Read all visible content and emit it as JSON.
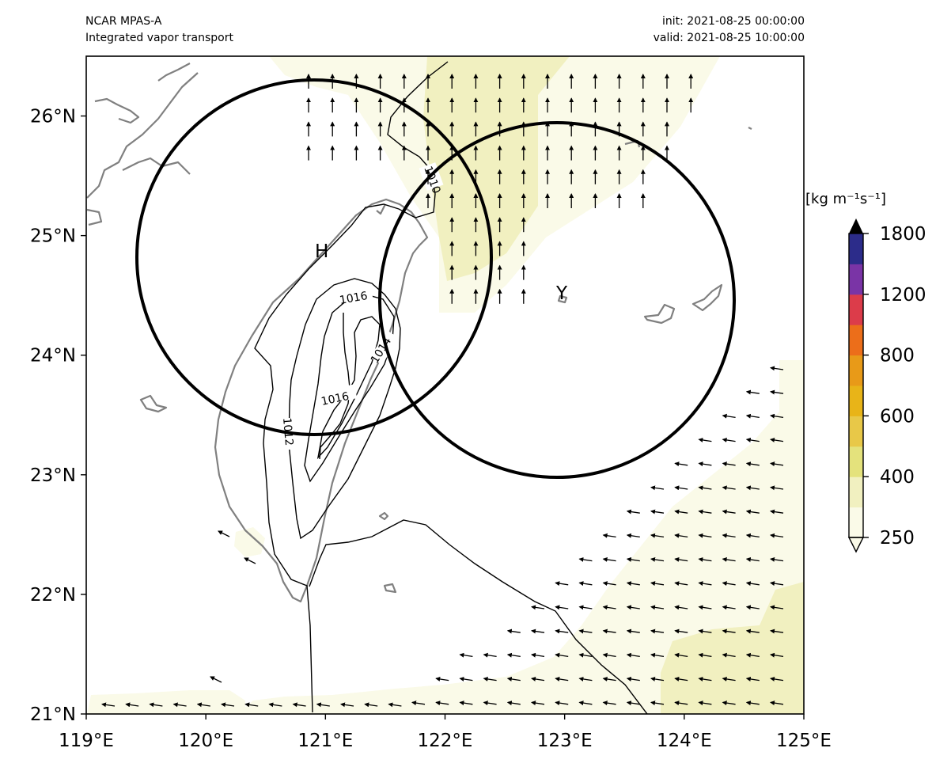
{
  "header": {
    "model": "NCAR MPAS-A",
    "product": "Integrated vapor transport",
    "init": "init: 2021-08-25 00:00:00",
    "valid": "valid: 2021-08-25 10:00:00"
  },
  "axes": {
    "lon_min": 119,
    "lon_max": 125,
    "lat_min": 21,
    "lat_max": 26.5,
    "x_ticks": [
      "119°E",
      "120°E",
      "121°E",
      "122°E",
      "123°E",
      "124°E",
      "125°E"
    ],
    "y_ticks": [
      "21°N",
      "22°N",
      "23°N",
      "24°N",
      "25°N",
      "26°N"
    ]
  },
  "chart_data": {
    "type": "heatmap",
    "title": "Integrated vapor transport",
    "xlim": [
      119,
      125
    ],
    "ylim": [
      21,
      26.5
    ],
    "colorbar": {
      "unit": "[kg m⁻¹s⁻¹]",
      "tick_labels": [
        "250",
        "400",
        "600",
        "800",
        "1200",
        "1800"
      ],
      "levels": [
        250,
        300,
        400,
        500,
        600,
        700,
        800,
        1000,
        1200,
        1500,
        1800
      ],
      "colors": [
        "#fafae8",
        "#f1f0c0",
        "#e4e27c",
        "#e8c848",
        "#e8b418",
        "#e89a18",
        "#ec6e1a",
        "#dc3c4a",
        "#7a34a6",
        "#2c2c8a"
      ],
      "extend": "both",
      "over_color": "#000000"
    },
    "pressure_contours": {
      "unit": "hPa",
      "labels": [
        "1010",
        "1016",
        "1014",
        "1016",
        "1012"
      ]
    },
    "circles": [
      {
        "label": "H",
        "center_lon": 120.9,
        "center_lat": 24.85
      },
      {
        "label": "Y",
        "center_lon": 122.95,
        "center_lat": 24.45
      }
    ]
  }
}
